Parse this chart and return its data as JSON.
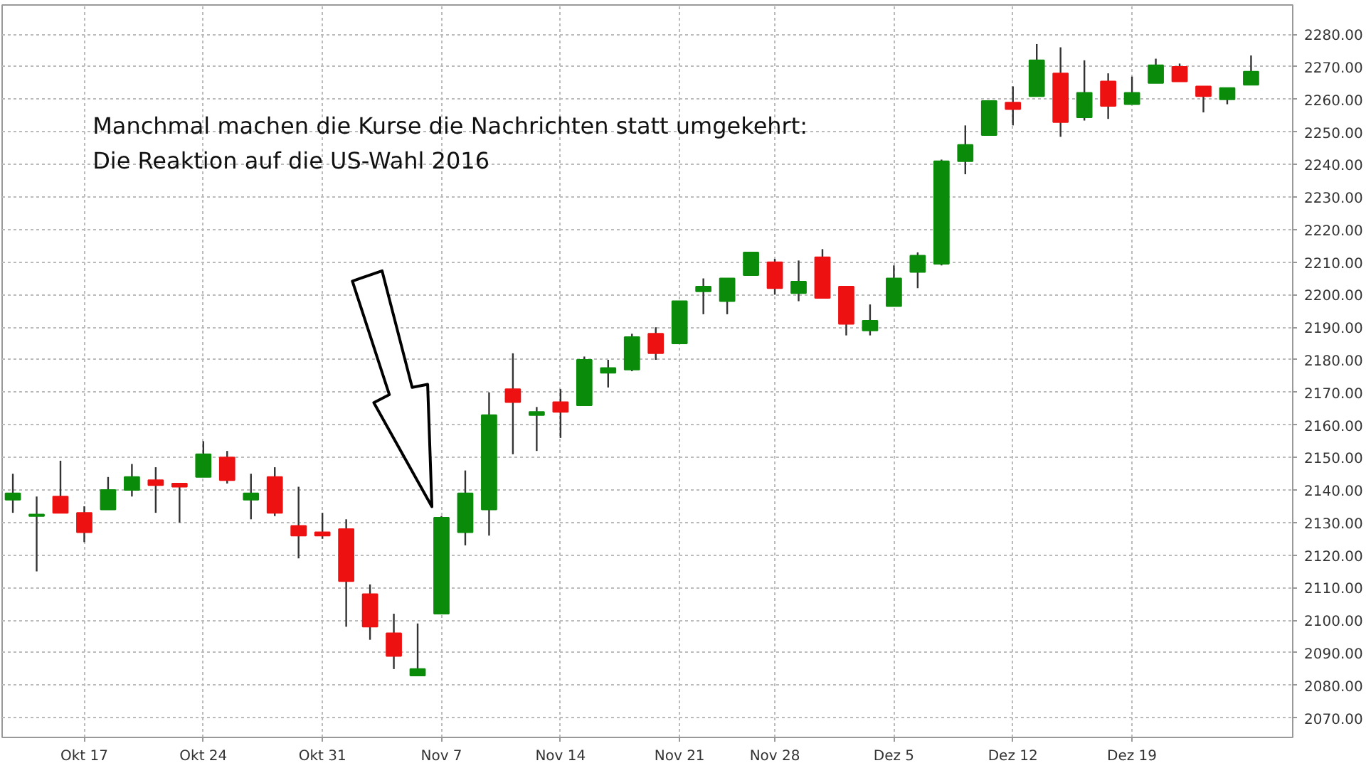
{
  "chart_data": {
    "type": "candlestick",
    "categories": [
      null,
      null,
      null,
      "Okt 17",
      null,
      null,
      null,
      null,
      "Okt 24",
      null,
      null,
      null,
      null,
      "Okt 31",
      null,
      null,
      null,
      null,
      "Nov 7",
      null,
      null,
      null,
      null,
      "Nov 14",
      null,
      null,
      null,
      null,
      "Nov 21",
      null,
      null,
      null,
      "Nov 28",
      null,
      null,
      null,
      null,
      "Dez 5",
      null,
      null,
      null,
      null,
      "Dez 12",
      null,
      null,
      null,
      null,
      "Dez 19",
      null,
      null,
      null,
      null,
      null
    ],
    "ohlc": [
      [
        2137,
        2145,
        2133,
        2139
      ],
      [
        2132,
        2138,
        2115,
        2132.5
      ],
      [
        2138,
        2149,
        2133,
        2133
      ],
      [
        2133,
        2135,
        2124,
        2127
      ],
      [
        2134,
        2144,
        2134,
        2140
      ],
      [
        2140,
        2148,
        2138,
        2144
      ],
      [
        2143,
        2147,
        2133,
        2141.5
      ],
      [
        2142,
        2142,
        2130,
        2141
      ],
      [
        2144,
        2155,
        2144,
        2151
      ],
      [
        2150,
        2152,
        2142,
        2143
      ],
      [
        2137,
        2145,
        2131,
        2139
      ],
      [
        2144,
        2147,
        2132,
        2133
      ],
      [
        2129,
        2141,
        2119,
        2126
      ],
      [
        2127,
        2133,
        2125,
        2126
      ],
      [
        2128,
        2131,
        2098,
        2112
      ],
      [
        2108,
        2111,
        2094,
        2098
      ],
      [
        2096,
        2102,
        2085,
        2089
      ],
      [
        2083,
        2099,
        2083,
        2085
      ],
      [
        2102,
        2132,
        2102,
        2131.5
      ],
      [
        2127,
        2146,
        2123,
        2139
      ],
      [
        2134,
        2170,
        2126,
        2163
      ],
      [
        2171,
        2182,
        2151,
        2167
      ],
      [
        2163,
        2165.5,
        2152,
        2164
      ],
      [
        2167,
        2171,
        2156,
        2164
      ],
      [
        2166,
        2181,
        2166,
        2180
      ],
      [
        2176,
        2180,
        2171.5,
        2177.5
      ],
      [
        2177,
        2188,
        2176.5,
        2187
      ],
      [
        2188,
        2190,
        2180,
        2182
      ],
      [
        2185,
        2198,
        2185,
        2198
      ],
      [
        2201,
        2205,
        2194,
        2202.5
      ],
      [
        2198,
        2205,
        2194,
        2205
      ],
      [
        2206,
        2213,
        2206,
        2213
      ],
      [
        2210,
        2211,
        2200,
        2202
      ],
      [
        2200.5,
        2210.5,
        2198,
        2204
      ],
      [
        2211.5,
        2214,
        2199,
        2199
      ],
      [
        2202.5,
        2202.5,
        2187.5,
        2191
      ],
      [
        2189,
        2197,
        2187.5,
        2192
      ],
      [
        2196.5,
        2209,
        2196.5,
        2205
      ],
      [
        2207,
        2213,
        2202,
        2212
      ],
      [
        2209.5,
        2241.5,
        2209,
        2241
      ],
      [
        2241,
        2252,
        2237,
        2246
      ],
      [
        2249,
        2259.5,
        2249,
        2259.5
      ],
      [
        2259,
        2264,
        2252,
        2257
      ],
      [
        2261,
        2277,
        2261,
        2272
      ],
      [
        2268,
        2276,
        2248.5,
        2253
      ],
      [
        2254.5,
        2272,
        2253.5,
        2262
      ],
      [
        2265.5,
        2268,
        2254,
        2258
      ],
      [
        2258.5,
        2267,
        2258.5,
        2262
      ],
      [
        2265,
        2272.5,
        2265,
        2270.5
      ],
      [
        2270,
        2271,
        2265.5,
        2265.5
      ],
      [
        2264,
        2264,
        2256,
        2261
      ],
      [
        2260,
        2263.5,
        2258.5,
        2263.5
      ],
      [
        2264.5,
        2273.5,
        2264.5,
        2268.5
      ]
    ],
    "ylim": [
      2064,
      2289
    ],
    "yticks": [
      {
        "value": 2070,
        "label": "2070.00"
      },
      {
        "value": 2080,
        "label": "2080.00"
      },
      {
        "value": 2090,
        "label": "2090.00"
      },
      {
        "value": 2100,
        "label": "2100.00"
      },
      {
        "value": 2110,
        "label": "2110.00"
      },
      {
        "value": 2120,
        "label": "2120.00"
      },
      {
        "value": 2130,
        "label": "2130.00"
      },
      {
        "value": 2140,
        "label": "2140.00"
      },
      {
        "value": 2150,
        "label": "2150.00"
      },
      {
        "value": 2160,
        "label": "2160.00"
      },
      {
        "value": 2170,
        "label": "2170.00"
      },
      {
        "value": 2180,
        "label": "2180.00"
      },
      {
        "value": 2190,
        "label": "2190.00"
      },
      {
        "value": 2200,
        "label": "2200.00"
      },
      {
        "value": 2210,
        "label": "2210.00"
      },
      {
        "value": 2220,
        "label": "2220.00"
      },
      {
        "value": 2230,
        "label": "2230.00"
      },
      {
        "value": 2240,
        "label": "2240.00"
      },
      {
        "value": 2250,
        "label": "2250.00"
      },
      {
        "value": 2260,
        "label": "2260.00"
      },
      {
        "value": 2270,
        "label": "2270.00"
      },
      {
        "value": 2280,
        "label": "2280.00"
      }
    ],
    "grid": true,
    "annotations": [
      "Manchmal machen die Kurse die Nachrichten statt umgekehrt:",
      "Die Reaktion auf die US-Wahl 2016"
    ]
  }
}
